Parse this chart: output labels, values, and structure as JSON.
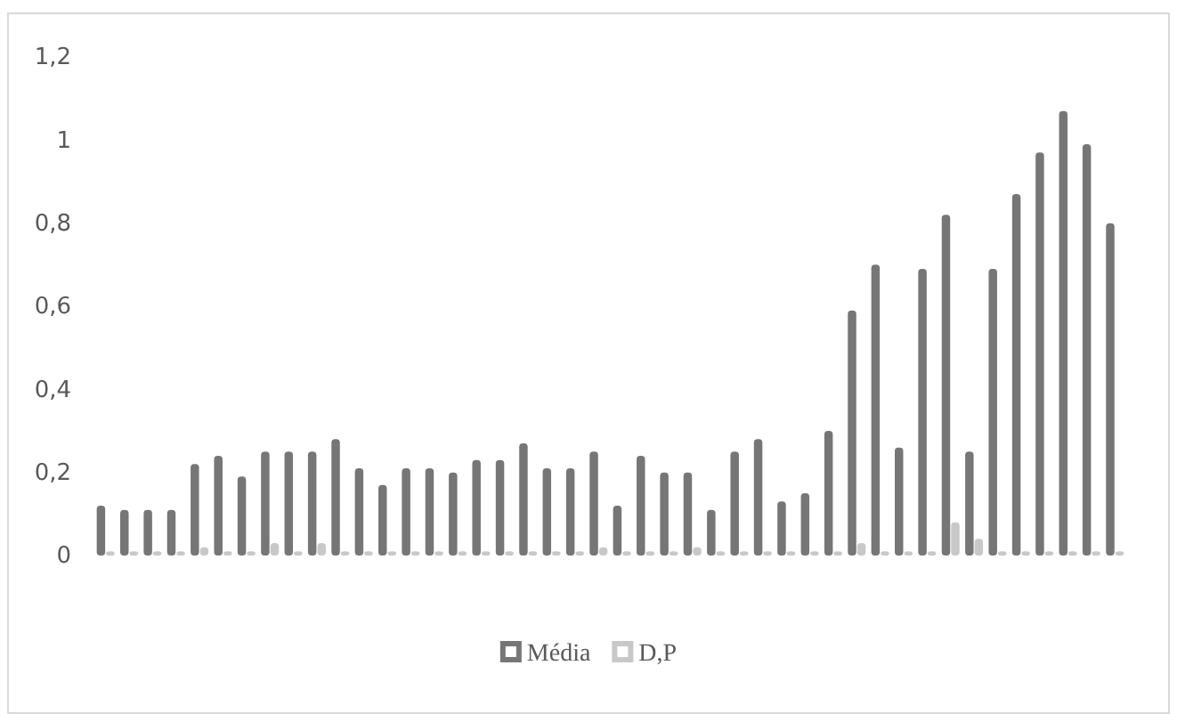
{
  "chart_data": {
    "type": "bar",
    "categories": [
      null,
      null,
      null,
      null,
      null,
      null,
      null,
      null,
      null,
      null,
      null,
      null,
      null,
      null,
      null,
      null,
      null,
      null,
      null,
      null,
      null,
      null,
      null,
      null,
      null,
      null,
      null,
      null,
      null,
      null,
      null,
      null,
      null,
      null,
      null,
      null,
      null,
      null,
      null,
      null,
      null,
      null,
      null,
      null
    ],
    "series": [
      {
        "name": "Média",
        "color": "#767676",
        "values": [
          0.12,
          0.11,
          0.11,
          0.11,
          0.22,
          0.24,
          0.19,
          0.25,
          0.25,
          0.25,
          0.28,
          0.21,
          0.17,
          0.21,
          0.21,
          0.2,
          0.23,
          0.23,
          0.27,
          0.21,
          0.21,
          0.25,
          0.12,
          0.24,
          0.2,
          0.2,
          0.11,
          0.25,
          0.28,
          0.13,
          0.15,
          0.3,
          0.59,
          0.7,
          0.26,
          0.69,
          0.82,
          0.25,
          0.69,
          0.87,
          0.97,
          1.07,
          0.99,
          0.8
        ]
      },
      {
        "name": "D,P",
        "color": "#c8c8c8",
        "values": [
          0.01,
          0.01,
          0.01,
          0.01,
          0.02,
          0.01,
          0.01,
          0.03,
          0.01,
          0.03,
          0.01,
          0.01,
          0.01,
          0.01,
          0.01,
          0.01,
          0.01,
          0.01,
          0.01,
          0.01,
          0.01,
          0.02,
          0.01,
          0.01,
          0.01,
          0.02,
          0.01,
          0.01,
          0.01,
          0.01,
          0.01,
          0.01,
          0.03,
          0.01,
          0.01,
          0.01,
          0.08,
          0.04,
          0.01,
          0.01,
          0.01,
          0.01,
          0.01,
          0.01
        ]
      }
    ],
    "ylim": [
      0,
      1.2
    ],
    "yticks": [
      {
        "value": 0,
        "label": "0"
      },
      {
        "value": 0.2,
        "label": "0,2"
      },
      {
        "value": 0.4,
        "label": "0,4"
      },
      {
        "value": 0.6,
        "label": "0,6"
      },
      {
        "value": 0.8,
        "label": "0,8"
      },
      {
        "value": 1,
        "label": "1"
      },
      {
        "value": 1.2,
        "label": "1,2"
      }
    ],
    "legend": "bottom"
  }
}
